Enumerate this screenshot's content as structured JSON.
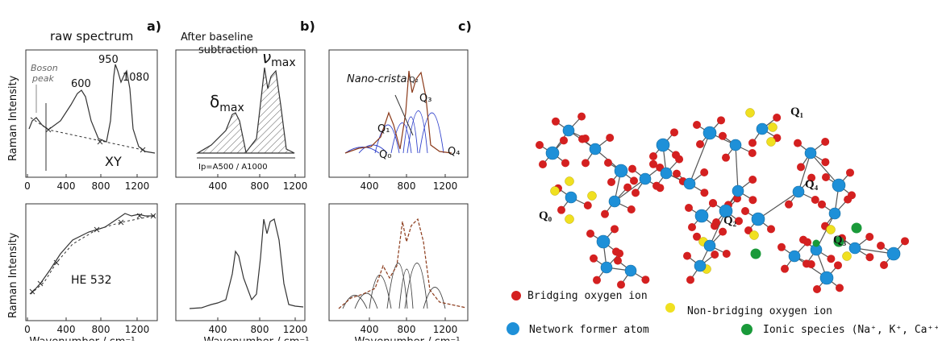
{
  "panel_labels": [
    "a)",
    "b)",
    "c)"
  ],
  "panel_a": {
    "title": "raw spectrum",
    "y_label": "Raman Intensity",
    "bottom_y_label": "Raman Intensity",
    "x_label": "Wavenumber / cm⁻¹",
    "boson_peak": [
      "Boson",
      "peak"
    ],
    "peaks": [
      "600",
      "950",
      "1080"
    ],
    "top_label": "XY",
    "bottom_label": "HE 532",
    "xticks": [
      "0",
      "400",
      "800",
      "1200"
    ]
  },
  "panel_b": {
    "title": [
      "After baseline",
      "subtraction"
    ],
    "delta": {
      "symbol": "δ",
      "sub": "max"
    },
    "nu": {
      "symbol": "ν",
      "sub": "max"
    },
    "ratio": "Ip=A500 / A1000",
    "x_label": "Wavenumber / cm⁻¹",
    "xticks": [
      "400",
      "800",
      "1200"
    ]
  },
  "panel_c": {
    "title": "Nano-cristal",
    "labels": [
      "Q₁",
      "Q₂",
      "Q₃",
      "Q₄",
      "Q₀"
    ],
    "x_label": "Wavenumber / cm⁻¹",
    "xticks": [
      "400",
      "800",
      "1200"
    ]
  },
  "structure": {
    "labels": [
      "Q₀",
      "Q₁",
      "Q₂",
      "Q₃",
      "Q₄"
    ],
    "legend": [
      "Bridging oxygen ion",
      "Non-bridging oxygen ion",
      "Network former atom",
      "Ionic species (Na⁺, K⁺, Ca⁺⁺, ...)"
    ]
  }
}
